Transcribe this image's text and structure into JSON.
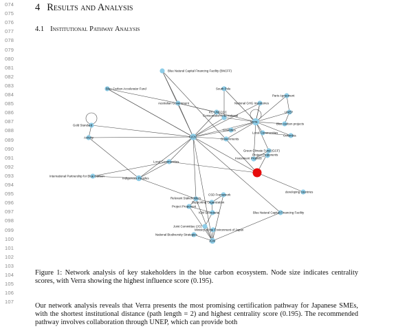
{
  "line_numbers": [
    "074",
    "075",
    "076",
    "077",
    "078",
    "079",
    "080",
    "081",
    "082",
    "083",
    "084",
    "085",
    "086",
    "087",
    "088",
    "089",
    "090",
    "091",
    "092",
    "093",
    "094",
    "095",
    "096",
    "097",
    "098",
    "099",
    "100",
    "101",
    "102",
    "103",
    "104",
    "105",
    "106",
    "107"
  ],
  "section": {
    "number": "4",
    "title": "Results and Analysis"
  },
  "subsection": {
    "number": "4.1",
    "title": "Institutional Pathway Analysis"
  },
  "figure": {
    "nodes": [
      {
        "id": "bncff",
        "label": "Blue Natural Capital Financing Facility (BNCFF)"
      },
      {
        "id": "bcaf",
        "label": "Blue Carbon Accelerator Fund"
      },
      {
        "id": "southpole",
        "label": "South Pole"
      },
      {
        "id": "paris",
        "label": "Paris Agreement"
      },
      {
        "id": "ausgov",
        "label": "Australian Government"
      },
      {
        "id": "ghg",
        "label": "National GHG Inventories"
      },
      {
        "id": "kcdiucn",
        "label": "KC-UNFCCC"
      },
      {
        "id": "unep",
        "label": "UNEP"
      },
      {
        "id": "ci",
        "label": "Conservation International"
      },
      {
        "id": "verra_lbl",
        "label": "Verra"
      },
      {
        "id": "bcp",
        "label": "Blue carbon projects"
      },
      {
        "id": "gold",
        "label": "Gold Standard"
      },
      {
        "id": "countries",
        "label": "Countries"
      },
      {
        "id": "localcomm",
        "label": "Local Communities"
      },
      {
        "id": "colombia",
        "label": "Colombia"
      },
      {
        "id": "activity",
        "label": "Activity"
      },
      {
        "id": "iucn",
        "label": "IUCN"
      },
      {
        "id": "governments",
        "label": "Governments"
      },
      {
        "id": "gcf",
        "label": "Green Climate Fund (GCF)"
      },
      {
        "id": "proj_dev",
        "label": "Project Proponents"
      },
      {
        "id": "investment",
        "label": "Investment Projects"
      },
      {
        "id": "local2",
        "label": "Local Communities"
      },
      {
        "id": "verra",
        "label": ""
      },
      {
        "id": "ipbc",
        "label": "International Partnership for Blue Carbon"
      },
      {
        "id": "indigenous",
        "label": "Indigenous Peoples"
      },
      {
        "id": "developing",
        "label": "developing countries"
      },
      {
        "id": "csd",
        "label": "CSD Framework"
      },
      {
        "id": "relevant",
        "label": "Relevant Stakeholders"
      },
      {
        "id": "supporting",
        "label": "Supporting Organization"
      },
      {
        "id": "proponent",
        "label": "Project Proponent"
      },
      {
        "id": "bluenat",
        "label": "Blue Natural Capital Financing Facility"
      },
      {
        "id": "secretariat",
        "label": "ICM Secretariat"
      },
      {
        "id": "jointcomm",
        "label": "Joint Committee (JC)"
      },
      {
        "id": "ministry",
        "label": "Ministry of the Environment of Japan"
      },
      {
        "id": "nbs",
        "label": "National Biodiversity Strategies"
      },
      {
        "id": "jcm",
        "label": "JCM"
      }
    ]
  },
  "caption": "Figure 1: Network analysis of key stakeholders in the blue carbon ecosystem. Node size indicates centrality scores, with Verra showing the highest influence score (0.195).",
  "body": "Our network analysis reveals that Verra presents the most promising certification pathway for Japanese SMEs, with the shortest institutional distance (path length = 2) and highest centrality score (0.195). The recommended pathway involves collaboration through UNEP, which can provide both"
}
